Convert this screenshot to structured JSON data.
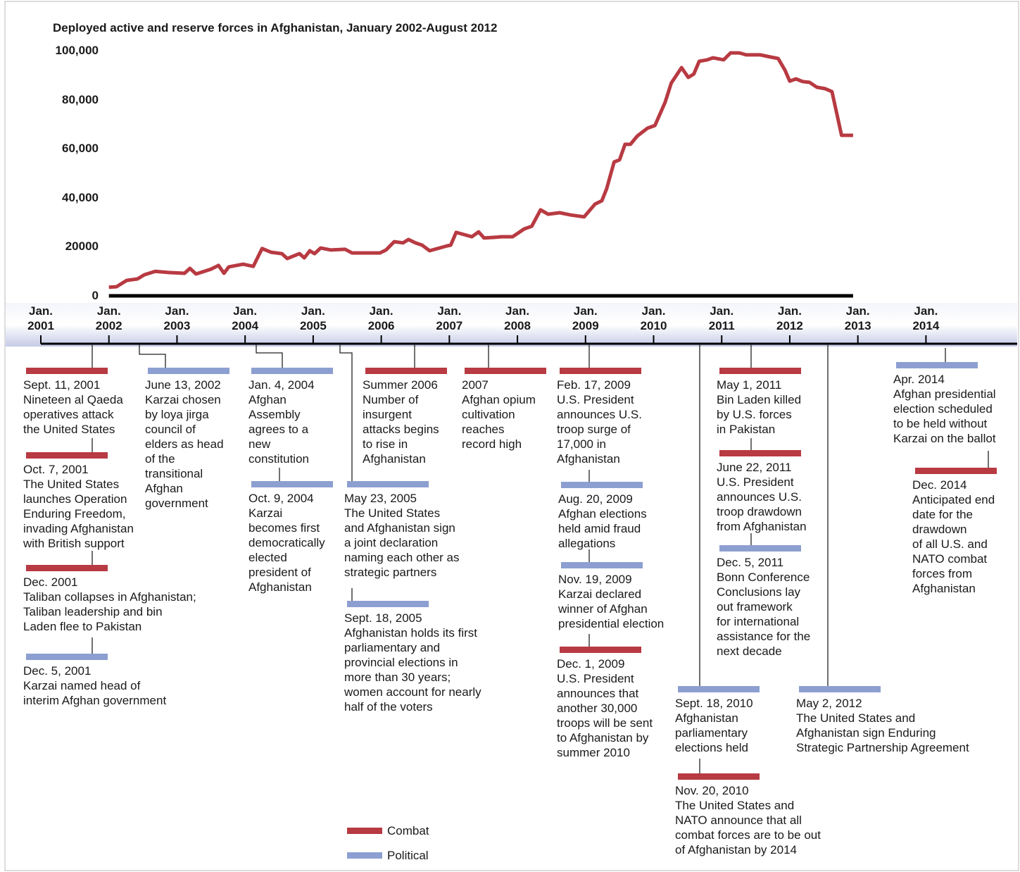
{
  "chart_data": {
    "type": "line",
    "title": "Deployed active and reserve forces in Afghanistan, January 2002-August 2012",
    "color": "#b83a42",
    "x": [
      2002.0,
      2002.11,
      2002.26,
      2002.42,
      2002.52,
      2002.68,
      2002.88,
      2003.11,
      2003.19,
      2003.28,
      2003.5,
      2003.61,
      2003.69,
      2003.76,
      2003.97,
      2004.12,
      2004.25,
      2004.38,
      2004.54,
      2004.62,
      2004.8,
      2004.87,
      2004.95,
      2005.02,
      2005.11,
      2005.26,
      2005.47,
      2005.57,
      2005.98,
      2006.07,
      2006.19,
      2006.32,
      2006.4,
      2006.5,
      2006.6,
      2006.71,
      2006.97,
      2007.02,
      2007.1,
      2007.33,
      2007.43,
      2007.51,
      2007.69,
      2007.76,
      2007.93,
      2008.1,
      2008.21,
      2008.34,
      2008.45,
      2008.62,
      2008.78,
      2008.98,
      2009.14,
      2009.24,
      2009.31,
      2009.42,
      2009.5,
      2009.58,
      2009.66,
      2009.76,
      2009.91,
      2010.02,
      2010.17,
      2010.26,
      2010.41,
      2010.51,
      2010.59,
      2010.67,
      2010.79,
      2010.87,
      2011.03,
      2011.13,
      2011.26,
      2011.36,
      2011.57,
      2011.67,
      2011.83,
      2011.93,
      2012.0,
      2012.09,
      2012.19,
      2012.29,
      2012.4,
      2012.52,
      2012.62,
      2012.76,
      2012.93
    ],
    "values": [
      3500,
      3700,
      6300,
      6900,
      8600,
      10000,
      9500,
      9200,
      11200,
      8900,
      10900,
      12400,
      9200,
      11800,
      12900,
      12000,
      19300,
      17800,
      17200,
      15200,
      17200,
      15500,
      18400,
      17200,
      19500,
      18700,
      19000,
      17500,
      17500,
      18700,
      22100,
      21600,
      23000,
      21600,
      20700,
      18400,
      20400,
      20700,
      25900,
      24100,
      26100,
      23600,
      23900,
      24100,
      24100,
      27300,
      28400,
      35100,
      33300,
      33900,
      33000,
      32200,
      37400,
      38800,
      43700,
      54600,
      55500,
      61800,
      61800,
      65200,
      68400,
      69500,
      79000,
      86800,
      93100,
      89100,
      90500,
      95700,
      96300,
      97100,
      96300,
      99100,
      99100,
      98300,
      98300,
      97700,
      96800,
      92000,
      87600,
      88500,
      87400,
      87100,
      85100,
      84500,
      83300,
      65500,
      65500
    ],
    "ylim": [
      0,
      100000
    ],
    "yticks": [
      0,
      20000,
      {
        "value": 40000,
        "label": "40,000"
      },
      {
        "value": 60000,
        "label": "60,000"
      },
      {
        "value": 80000,
        "label": "80,000"
      },
      {
        "value": 100000,
        "label": "100,000"
      }
    ],
    "xlim": [
      2001,
      2015.34
    ],
    "xticks": [
      {
        "value": 2001,
        "label": "Jan. 2001"
      },
      {
        "value": 2002,
        "label": "Jan. 2002"
      },
      {
        "value": 2003,
        "label": "Jan. 2003"
      },
      {
        "value": 2004,
        "label": "Jan. 2004"
      },
      {
        "value": 2005,
        "label": "Jan. 2005"
      },
      {
        "value": 2006,
        "label": "Jan. 2006"
      },
      {
        "value": 2007,
        "label": "Jan. 2007"
      },
      {
        "value": 2008,
        "label": "Jan. 2008"
      },
      {
        "value": 2009,
        "label": "Jan. 2009"
      },
      {
        "value": 2010,
        "label": "Jan. 2010"
      },
      {
        "value": 2011,
        "label": "Jan. 2011"
      },
      {
        "value": 2012,
        "label": "Jan. 2012"
      },
      {
        "value": 2013,
        "label": "Jan. 2013"
      },
      {
        "value": 2014,
        "label": "Jan. 2014"
      }
    ],
    "grid": false,
    "legend": [
      {
        "name": "Combat",
        "color": "#b83a42"
      },
      {
        "name": "Political",
        "color": "#8c9fd0"
      }
    ],
    "events": [
      {
        "date": "Sept. 11, 2001",
        "text": "Nineteen al Qaeda\noperatives attack\nthe United States",
        "category": "Combat"
      },
      {
        "date": "Oct. 7, 2001",
        "text": "The United States\nlaunches Operation\nEnduring Freedom,\ninvading Afghanistan\nwith British support",
        "category": "Combat"
      },
      {
        "date": "Dec. 2001",
        "text": "Taliban collapses in Afghanistan;\nTaliban leadership and bin\nLaden flee to Pakistan",
        "category": "Combat"
      },
      {
        "date": "Dec. 5, 2001",
        "text": "Karzai named head of\ninterim Afghan government",
        "category": "Political"
      },
      {
        "date": "June 13, 2002",
        "text": "Karzai chosen\nby loya jirga\ncouncil of\nelders as head\nof the\ntransitional\nAfghan\ngovernment",
        "category": "Political"
      },
      {
        "date": "Jan. 4, 2004",
        "text": "Afghan\nAssembly\nagrees to a\nnew\nconstitution",
        "category": "Political"
      },
      {
        "date": "Oct. 9, 2004",
        "text": "Karzai\nbecomes first\ndemocratically\nelected\npresident of\nAfghanistan",
        "category": "Political"
      },
      {
        "date": "Summer 2006",
        "text": "Number of\ninsurgent\nattacks begins\nto rise in\nAfghanistan",
        "category": "Combat"
      },
      {
        "date": "May 23, 2005",
        "text": "The United States\nand Afghanistan sign\na joint declaration\nnaming each other as\nstrategic partners",
        "category": "Political"
      },
      {
        "date": "Sept. 18, 2005",
        "text": "Afghanistan holds its first\nparliamentary and\nprovincial elections in\nmore than 30 years;\nwomen account for nearly\nhalf of the voters",
        "category": "Political"
      },
      {
        "date": "2007",
        "text": "Afghan opium\ncultivation\nreaches\nrecord high",
        "category": "Combat"
      },
      {
        "date": "Feb. 17, 2009",
        "text": "U.S. President\nannounces U.S.\ntroop surge of\n17,000 in\nAfghanistan",
        "category": "Combat"
      },
      {
        "date": "Aug. 20, 2009",
        "text": "Afghan elections\nheld amid fraud\nallegations",
        "category": "Political"
      },
      {
        "date": "Nov. 19, 2009",
        "text": "Karzai declared\nwinner of Afghan\npresidential election",
        "category": "Political"
      },
      {
        "date": "Dec. 1, 2009",
        "text": "U.S. President\nannounces that\nanother 30,000\ntroops will be sent\nto Afghanistan by\nsummer 2010",
        "category": "Combat"
      },
      {
        "date": "Sept. 18, 2010",
        "text": "Afghanistan\nparliamentary\nelections held",
        "category": "Political"
      },
      {
        "date": "Nov. 20, 2010",
        "text": "The United States and\nNATO announce that all\ncombat forces are to be out\nof Afghanistan by 2014",
        "category": "Combat"
      },
      {
        "date": "May 1, 2011",
        "text": "Bin Laden killed\nby U.S. forces\nin Pakistan",
        "category": "Combat"
      },
      {
        "date": "June 22, 2011",
        "text": "U.S. President\nannounces U.S.\ntroop drawdown\nfrom Afghanistan",
        "category": "Combat"
      },
      {
        "date": "Dec. 5, 2011",
        "text": "Bonn Conference\nConclusions lay\nout framework\nfor international\nassistance for the\nnext decade",
        "category": "Political"
      },
      {
        "date": "May 2, 2012",
        "text": "The United States and\nAfghanistan sign Enduring\nStrategic Partnership Agreement",
        "category": "Political"
      },
      {
        "date": "Apr. 2014",
        "text": "Afghan presidential\nelection scheduled\nto be held without\nKarzai on the ballot",
        "category": "Political"
      },
      {
        "date": "Dec. 2014",
        "text": "Anticipated end\ndate for the\ndrawdown\nof all U.S. and\nNATO combat\nforces from\nAfghanistan",
        "category": "Combat"
      }
    ]
  }
}
